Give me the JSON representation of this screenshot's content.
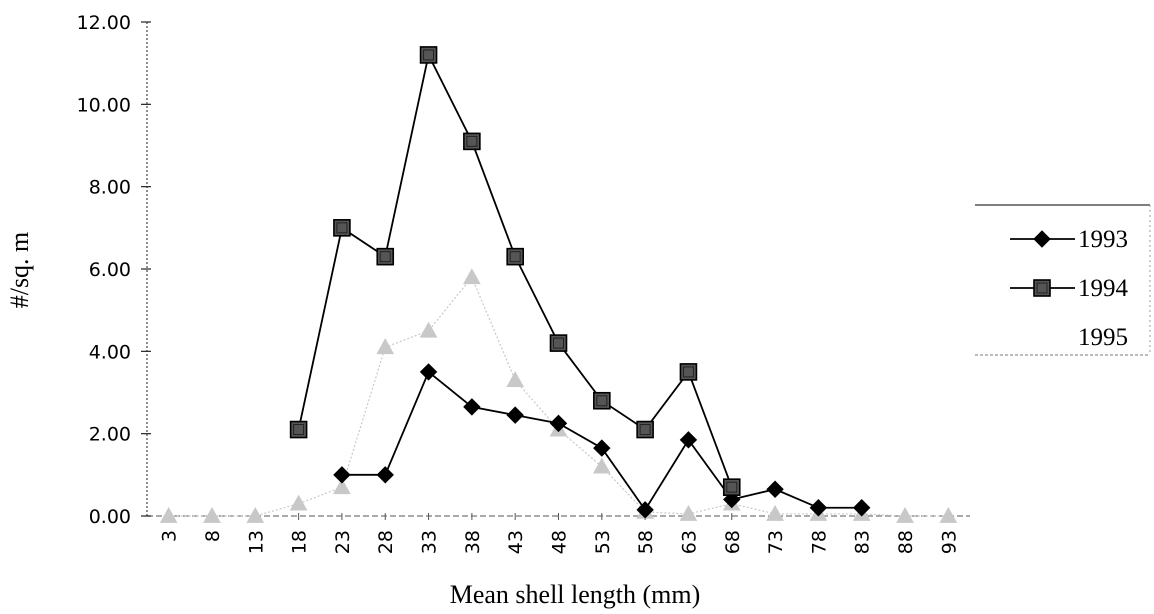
{
  "chart_data": {
    "type": "line",
    "xlabel": "Mean shell length (mm)",
    "ylabel": "#/sq. m",
    "categories": [
      "3",
      "8",
      "13",
      "18",
      "23",
      "28",
      "33",
      "38",
      "43",
      "48",
      "53",
      "58",
      "63",
      "68",
      "73",
      "78",
      "83",
      "88",
      "93"
    ],
    "ylim": [
      0,
      12
    ],
    "yticks": [
      "0.00",
      "2.00",
      "4.00",
      "6.00",
      "8.00",
      "10.00",
      "12.00"
    ],
    "legend_position": "right",
    "series": [
      {
        "name": "1993",
        "marker": "diamond",
        "color": "#000000",
        "values": [
          null,
          null,
          null,
          null,
          1.0,
          1.0,
          3.5,
          2.65,
          2.45,
          2.25,
          1.65,
          0.15,
          1.85,
          0.4,
          0.65,
          0.2,
          0.2,
          null,
          null
        ]
      },
      {
        "name": "1994",
        "marker": "square",
        "color": "#000000",
        "values": [
          null,
          null,
          null,
          2.1,
          7.0,
          6.3,
          11.2,
          9.1,
          6.3,
          4.2,
          2.8,
          2.1,
          3.5,
          0.7,
          null,
          null,
          null,
          null,
          null
        ]
      },
      {
        "name": "1995",
        "marker": "triangle",
        "color": "#c8c8c8",
        "values": [
          0.0,
          0.0,
          0.0,
          0.3,
          0.7,
          4.1,
          4.5,
          5.8,
          3.3,
          2.1,
          1.2,
          0.1,
          0.05,
          0.3,
          0.05,
          0.05,
          0.05,
          0.0,
          0.0
        ]
      }
    ]
  }
}
